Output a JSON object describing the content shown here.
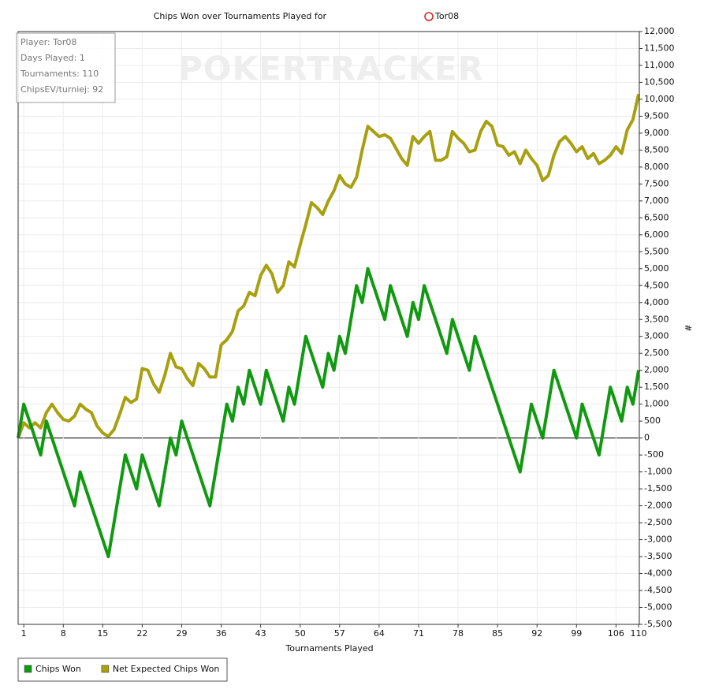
{
  "chart_data": {
    "type": "line",
    "title": "Chips Won over Tournaments Played for",
    "player_name": "Tor08",
    "watermark": "POKERTRACKER",
    "info": [
      "Player: Tor08",
      "Days Played: 1",
      "Tournaments: 110",
      "ChipsEV/turniej: 92"
    ],
    "x_label": "Tournaments Played",
    "y_label": "#",
    "x": [
      0,
      1,
      2,
      3,
      4,
      5,
      6,
      7,
      8,
      9,
      10,
      11,
      12,
      13,
      14,
      15,
      16,
      17,
      18,
      19,
      20,
      21,
      22,
      23,
      24,
      25,
      26,
      27,
      28,
      29,
      30,
      31,
      32,
      33,
      34,
      35,
      36,
      37,
      38,
      39,
      40,
      41,
      42,
      43,
      44,
      45,
      46,
      47,
      48,
      49,
      50,
      51,
      52,
      53,
      54,
      55,
      56,
      57,
      58,
      59,
      60,
      61,
      62,
      63,
      64,
      65,
      66,
      67,
      68,
      69,
      70,
      71,
      72,
      73,
      74,
      75,
      76,
      77,
      78,
      79,
      80,
      81,
      82,
      83,
      84,
      85,
      86,
      87,
      88,
      89,
      90,
      91,
      92,
      93,
      94,
      95,
      96,
      97,
      98,
      99,
      100,
      101,
      102,
      103,
      104,
      105,
      106,
      107,
      108,
      109,
      110
    ],
    "series": [
      {
        "name": "Chips Won",
        "color": "#119911",
        "values": [
          0,
          1000,
          500,
          0,
          -500,
          500,
          0,
          -500,
          -1000,
          -1500,
          -2000,
          -1000,
          -1500,
          -2000,
          -2500,
          -3000,
          -3500,
          -2500,
          -1500,
          -500,
          -1000,
          -1500,
          -500,
          -1000,
          -1500,
          -2000,
          -1000,
          0,
          -500,
          500,
          0,
          -500,
          -1000,
          -1500,
          -2000,
          -1000,
          0,
          1000,
          500,
          1500,
          1000,
          2000,
          1500,
          1000,
          2000,
          1500,
          1000,
          500,
          1500,
          1000,
          2000,
          3000,
          2500,
          2000,
          1500,
          2500,
          2000,
          3000,
          2500,
          3500,
          4500,
          4000,
          5000,
          4500,
          4000,
          3500,
          4500,
          4000,
          3500,
          3000,
          4000,
          3500,
          4500,
          4000,
          3500,
          3000,
          2500,
          3500,
          3000,
          2500,
          2000,
          3000,
          2500,
          2000,
          1500,
          1000,
          500,
          0,
          -500,
          -1000,
          0,
          1000,
          500,
          0,
          1000,
          2000,
          1500,
          1000,
          500,
          0,
          1000,
          500,
          0,
          -500,
          500,
          1500,
          1000,
          500,
          1500,
          1000,
          2000
        ]
      },
      {
        "name": "Net Expected Chips Won",
        "color": "#a8a010",
        "values": [
          0,
          450,
          300,
          450,
          300,
          750,
          1000,
          750,
          550,
          500,
          650,
          1000,
          850,
          750,
          350,
          150,
          50,
          250,
          700,
          1200,
          1050,
          1150,
          2050,
          2000,
          1600,
          1350,
          1850,
          2500,
          2100,
          2050,
          1750,
          1550,
          2200,
          2050,
          1800,
          1800,
          2750,
          2900,
          3150,
          3750,
          3900,
          4300,
          4200,
          4800,
          5100,
          4850,
          4300,
          4500,
          5200,
          5050,
          5700,
          6300,
          6950,
          6800,
          6600,
          7000,
          7300,
          7750,
          7500,
          7400,
          7700,
          8500,
          9200,
          9050,
          8900,
          8950,
          8850,
          8550,
          8250,
          8050,
          8900,
          8700,
          8900,
          9050,
          8200,
          8200,
          8300,
          9050,
          8850,
          8700,
          8450,
          8500,
          9050,
          9350,
          9200,
          8650,
          8600,
          8350,
          8450,
          8100,
          8500,
          8250,
          8050,
          7600,
          7750,
          8350,
          8750,
          8900,
          8700,
          8450,
          8600,
          8250,
          8400,
          8100,
          8200,
          8350,
          8600,
          8400,
          9100,
          9400,
          10150
        ]
      }
    ],
    "xlim": [
      0,
      110
    ],
    "xticks": [
      1,
      8,
      15,
      22,
      29,
      36,
      43,
      50,
      57,
      64,
      71,
      78,
      85,
      92,
      99,
      106,
      110
    ],
    "ylim": [
      -5500,
      12000
    ],
    "yticks": [
      {
        "value": -5500,
        "label": "-5,500"
      },
      {
        "value": -5000,
        "label": "-5,000"
      },
      {
        "value": -4500,
        "label": "-4,500"
      },
      {
        "value": -4000,
        "label": "-4,000"
      },
      {
        "value": -3500,
        "label": "-3,500"
      },
      {
        "value": -3000,
        "label": "-3,000"
      },
      {
        "value": -2500,
        "label": "-2,500"
      },
      {
        "value": -2000,
        "label": "-2,000"
      },
      {
        "value": -1500,
        "label": "-1,500"
      },
      {
        "value": -1000,
        "label": "-1,000"
      },
      -500,
      0,
      500,
      {
        "value": 1000,
        "label": "1,000"
      },
      {
        "value": 1500,
        "label": "1,500"
      },
      {
        "value": 2000,
        "label": "2,000"
      },
      {
        "value": 2500,
        "label": "2,500"
      },
      {
        "value": 3000,
        "label": "3,000"
      },
      {
        "value": 3500,
        "label": "3,500"
      },
      {
        "value": 4000,
        "label": "4,000"
      },
      {
        "value": 4500,
        "label": "4,500"
      },
      {
        "value": 5000,
        "label": "5,000"
      },
      {
        "value": 5500,
        "label": "5,500"
      },
      {
        "value": 6000,
        "label": "6,000"
      },
      {
        "value": 6500,
        "label": "6,500"
      },
      {
        "value": 7000,
        "label": "7,000"
      },
      {
        "value": 7500,
        "label": "7,500"
      },
      {
        "value": 8000,
        "label": "8,000"
      },
      {
        "value": 8500,
        "label": "8,500"
      },
      {
        "value": 9000,
        "label": "9,000"
      },
      {
        "value": 9500,
        "label": "9,500"
      },
      {
        "value": 10000,
        "label": "10,000"
      },
      {
        "value": 10500,
        "label": "10,500"
      },
      {
        "value": 11000,
        "label": "11,000"
      },
      {
        "value": 11500,
        "label": "11,500"
      },
      {
        "value": 12000,
        "label": "12,000"
      }
    ],
    "grid": true
  }
}
